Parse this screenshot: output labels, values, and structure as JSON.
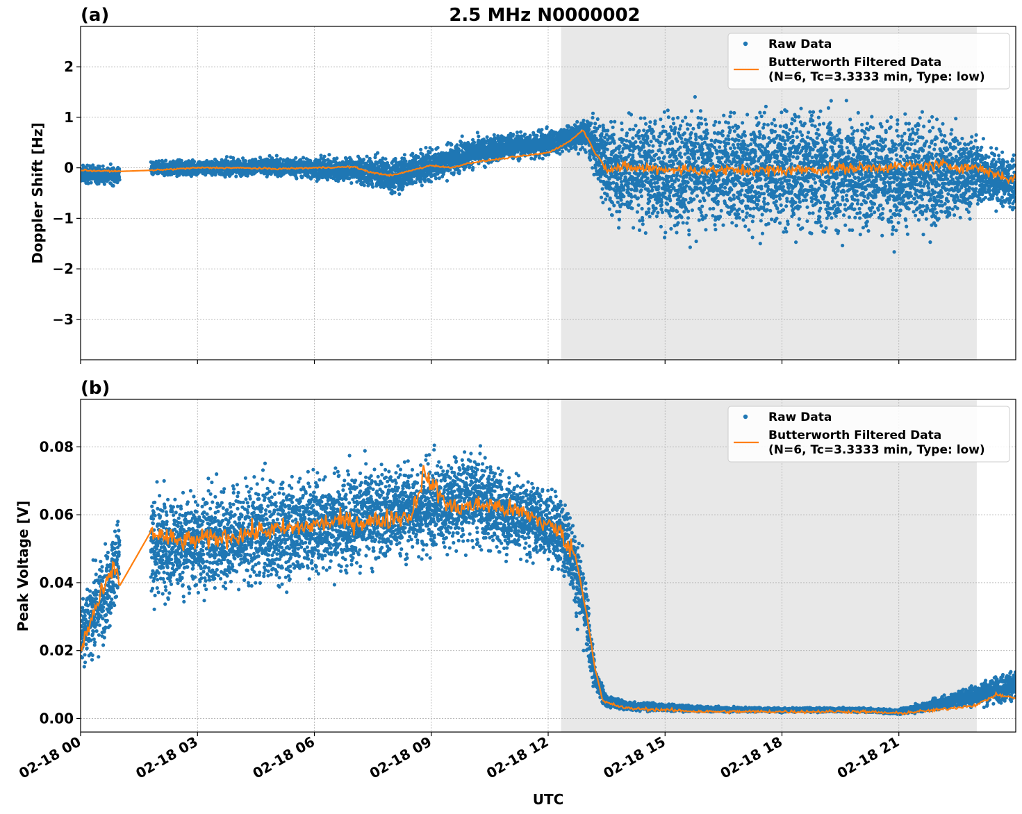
{
  "figure": {
    "title": "2.5 MHz N0000002",
    "xlabel": "UTC",
    "shade_span_hours": [
      12.33,
      23.0
    ]
  },
  "legend": {
    "raw_label": "Raw Data",
    "filtered_label_line1": "Butterworth Filtered Data",
    "filtered_label_line2": "(N=6, Tc=3.3333 min, Type: low)"
  },
  "colors": {
    "raw": "#1f77b4",
    "filtered": "#ff7f0e",
    "shade": "#e8e8e8",
    "grid": "#b0b0b0"
  },
  "x_ticks": [
    "02-18 00",
    "02-18 03",
    "02-18 06",
    "02-18 09",
    "02-18 12",
    "02-18 15",
    "02-18 18",
    "02-18 21"
  ],
  "chart_data": [
    {
      "type": "scatter",
      "panel_label": "(a)",
      "ylabel": "Doppler Shift [Hz]",
      "xlim_hours": [
        0,
        24
      ],
      "ylim": [
        -3.8,
        2.8
      ],
      "y_ticks": [
        2,
        1,
        0,
        -1,
        -2,
        -3
      ],
      "y_tick_labels": [
        "2",
        "1",
        "0",
        "−1",
        "−2",
        "−3"
      ],
      "grid": true,
      "legend_position": "top-right",
      "data_gap_hours": [
        1.0,
        1.8
      ],
      "series": [
        {
          "name": "Raw Data",
          "style": "points",
          "envelope": {
            "x": [
              0,
              1,
              1.8,
              3,
              5,
              7,
              8,
              9,
              10,
              11,
              12,
              12.5,
              13,
              13.5,
              14,
              16,
              18,
              20,
              22,
              23,
              24
            ],
            "low": [
              -0.4,
              -0.45,
              -0.25,
              -0.25,
              -0.25,
              -0.45,
              -0.7,
              -0.5,
              -0.2,
              0.0,
              0.05,
              0.2,
              0.1,
              -1.5,
              -1.8,
              -2.0,
              -2.0,
              -2.0,
              -1.9,
              -1.2,
              -1.1
            ],
            "high": [
              0.15,
              0.15,
              0.2,
              0.25,
              0.3,
              0.35,
              0.4,
              0.6,
              0.75,
              0.85,
              0.9,
              1.0,
              1.2,
              1.5,
              1.7,
              1.9,
              1.9,
              1.8,
              1.6,
              1.0,
              0.4
            ]
          }
        },
        {
          "name": "Butterworth Filtered Data\n(N=6, Tc=3.3333 min, Type: low)",
          "style": "line",
          "x": [
            0,
            1.0,
            1.8,
            3,
            4,
            5,
            6,
            7,
            7.5,
            8,
            8.5,
            9,
            9.5,
            10,
            10.5,
            11,
            11.5,
            12,
            12.5,
            12.9,
            13.2,
            13.5,
            14,
            16,
            18,
            20,
            22,
            23,
            24
          ],
          "y": [
            -0.05,
            -0.07,
            -0.05,
            0.0,
            0.0,
            -0.02,
            0.0,
            0.02,
            -0.1,
            -0.15,
            -0.05,
            0.05,
            0.0,
            0.1,
            0.15,
            0.2,
            0.25,
            0.3,
            0.5,
            0.75,
            0.3,
            0.0,
            0.0,
            -0.05,
            -0.05,
            0.0,
            0.05,
            0.0,
            -0.25
          ],
          "noise_after_hours": 13.4,
          "noise_amplitude": 0.18
        }
      ]
    },
    {
      "type": "scatter",
      "panel_label": "(b)",
      "ylabel": "Peak Voltage [V]",
      "xlim_hours": [
        0,
        24
      ],
      "ylim": [
        -0.004,
        0.094
      ],
      "y_ticks": [
        0.08,
        0.06,
        0.04,
        0.02,
        0.0
      ],
      "y_tick_labels": [
        "0.08",
        "0.06",
        "0.04",
        "0.02",
        "0.00"
      ],
      "grid": true,
      "legend_position": "top-right",
      "data_gap_hours": [
        1.0,
        1.8
      ],
      "series": [
        {
          "name": "Raw Data",
          "style": "points",
          "envelope": {
            "x": [
              0,
              0.5,
              0.9,
              1.0,
              1.8,
              3,
              5,
              7,
              9,
              10,
              11,
              12,
              12.5,
              12.9,
              13.2,
              13.5,
              14,
              16,
              18,
              20,
              21,
              22,
              23,
              24
            ],
            "low": [
              0.008,
              0.012,
              0.025,
              0.03,
              0.025,
              0.028,
              0.03,
              0.035,
              0.04,
              0.042,
              0.04,
              0.04,
              0.035,
              0.015,
              0.004,
              0.002,
              0.0015,
              0.0015,
              0.0015,
              0.0015,
              0.0008,
              0.0015,
              0.002,
              0.002
            ],
            "high": [
              0.045,
              0.055,
              0.065,
              0.068,
              0.075,
              0.076,
              0.08,
              0.082,
              0.085,
              0.088,
              0.08,
              0.075,
              0.07,
              0.055,
              0.02,
              0.008,
              0.006,
              0.004,
              0.0035,
              0.0035,
              0.003,
              0.007,
              0.012,
              0.018
            ]
          }
        },
        {
          "name": "Butterworth Filtered Data\n(N=6, Tc=3.3333 min, Type: low)",
          "style": "line",
          "x": [
            0,
            0.3,
            0.6,
            0.9,
            1.0,
            1.8,
            2.5,
            3.5,
            4.5,
            5.5,
            6.5,
            7.5,
            8.5,
            8.8,
            9.5,
            10.5,
            11.5,
            12.3,
            12.7,
            13.0,
            13.2,
            13.4,
            14,
            16,
            18,
            20,
            21,
            21.5,
            22,
            23,
            23.5,
            24
          ],
          "y": [
            0.02,
            0.03,
            0.038,
            0.045,
            0.039,
            0.055,
            0.052,
            0.053,
            0.055,
            0.056,
            0.058,
            0.058,
            0.06,
            0.072,
            0.062,
            0.063,
            0.06,
            0.055,
            0.048,
            0.03,
            0.015,
            0.005,
            0.003,
            0.002,
            0.002,
            0.002,
            0.0015,
            0.002,
            0.0025,
            0.004,
            0.007,
            0.006
          ],
          "noise_before_hours": 12.6,
          "noise_amplitude": 0.005
        }
      ]
    }
  ]
}
